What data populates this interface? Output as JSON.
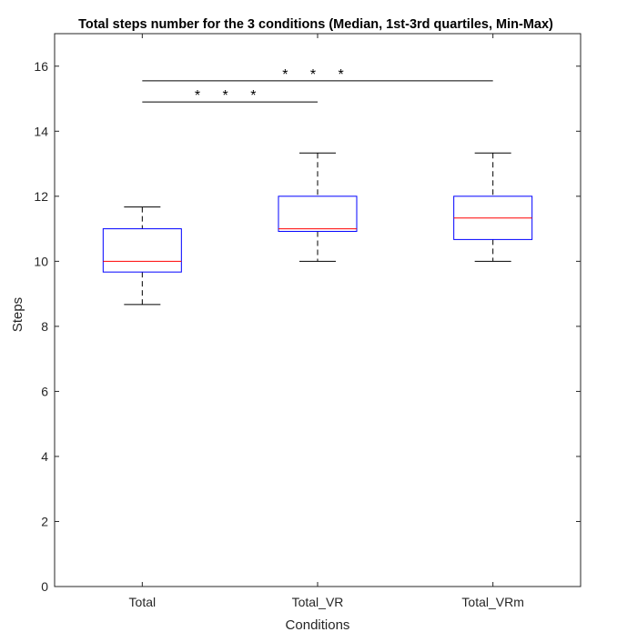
{
  "chart_data": {
    "type": "boxplot",
    "title": "Total steps number for the 3 conditions (Median, 1st-3rd quartiles, Min-Max)",
    "xlabel": "Conditions",
    "ylabel": "Steps",
    "ylim": [
      0,
      17
    ],
    "yticks": [
      0,
      2,
      4,
      6,
      8,
      10,
      12,
      14,
      16
    ],
    "ytick_labels": [
      "0",
      "2",
      "4",
      "6",
      "8",
      "10",
      "12",
      "14",
      "16"
    ],
    "categories": [
      "Total",
      "Total_VR",
      "Total_VRm"
    ],
    "boxes": [
      {
        "category": "Total",
        "min": 8.67,
        "q1": 9.67,
        "median": 10.0,
        "q3": 11.0,
        "max": 11.67
      },
      {
        "category": "Total_VR",
        "min": 10.0,
        "q1": 10.92,
        "median": 11.0,
        "q3": 12.0,
        "max": 13.33
      },
      {
        "category": "Total_VRm",
        "min": 10.0,
        "q1": 10.67,
        "median": 11.33,
        "q3": 12.0,
        "max": 13.33
      }
    ],
    "significance": [
      {
        "from": "Total",
        "to": "Total_VR",
        "y": 14.9,
        "label": "* * *"
      },
      {
        "from": "Total",
        "to": "Total_VRm",
        "y": 15.55,
        "label": "* * *"
      }
    ],
    "grid": false,
    "colors": {
      "box": "#0000ff",
      "median": "#ff0000",
      "whisker": "#000000",
      "axis": "#262626"
    }
  }
}
